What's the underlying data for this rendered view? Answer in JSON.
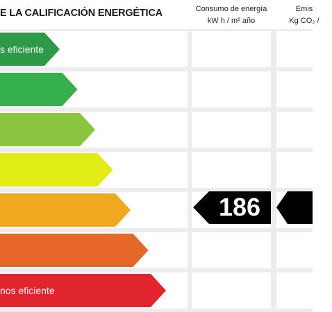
{
  "header": {
    "title": "E LA CALIFICACIÓN ENERGÉTICA",
    "consumption_label": "Consumo de energía",
    "consumption_unit": "kW h / m² año",
    "emissions_label": "Emis",
    "emissions_unit": "Kg CO₂ /"
  },
  "rating_bars": [
    {
      "color": "#2e9a48",
      "label": "s eficiente"
    },
    {
      "color": "#36b04a"
    },
    {
      "color": "#8bc53f"
    },
    {
      "color": "#e2ec17"
    },
    {
      "color": "#f0a81f"
    },
    {
      "color": "#e5672a"
    },
    {
      "color": "#e1252c",
      "label": "nos eficiente"
    }
  ],
  "consumption": {
    "value": "186",
    "row": 5
  },
  "indicator_color": "#000000"
}
